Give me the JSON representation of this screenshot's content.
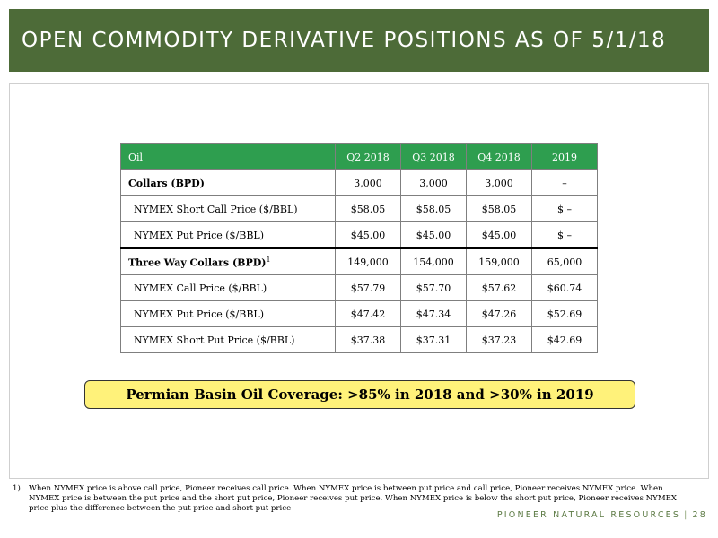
{
  "title": "OPEN COMMODITY DERIVATIVE POSITIONS AS OF 5/1/18",
  "table": {
    "headers": [
      "Oil",
      "Q2 2018",
      "Q3 2018",
      "Q4 2018",
      "2019"
    ],
    "rows": [
      {
        "label": "Collars (BPD)",
        "values": [
          "3,000",
          "3,000",
          "3,000",
          "–"
        ]
      },
      {
        "label": "NYMEX Short Call Price ($/BBL)",
        "values": [
          "$58.05",
          "$58.05",
          "$58.05",
          "$ –"
        ]
      },
      {
        "label": "NYMEX Put Price ($/BBL)",
        "values": [
          "$45.00",
          "$45.00",
          "$45.00",
          "$ –"
        ]
      },
      {
        "label": "Three Way Collars (BPD)",
        "footnote_marker": "1",
        "values": [
          "149,000",
          "154,000",
          "159,000",
          "65,000"
        ]
      },
      {
        "label": "NYMEX Call Price ($/BBL)",
        "values": [
          "$57.79",
          "$57.70",
          "$57.62",
          "$60.74"
        ]
      },
      {
        "label": "NYMEX Put Price ($/BBL)",
        "values": [
          "$47.42",
          "$47.34",
          "$47.26",
          "$52.69"
        ]
      },
      {
        "label": "NYMEX Short Put Price ($/BBL)",
        "values": [
          "$37.38",
          "$37.31",
          "$37.23",
          "$42.69"
        ]
      }
    ]
  },
  "coverage": "Permian Basin Oil Coverage: >85% in 2018 and >30% in 2019",
  "footnote": {
    "number": "1)",
    "text": "When NYMEX price is above call price, Pioneer receives call price. When NYMEX price is between put price and call price, Pioneer receives NYMEX price. When NYMEX price is between the put price and the short put price, Pioneer receives put price. When NYMEX price is below the short put price, Pioneer receives NYMEX price plus the difference between the put price and short put price"
  },
  "footer": {
    "company": "PIONEER NATURAL RESOURCES",
    "divider": "|",
    "page": "28"
  },
  "colors": {
    "title_bar": "#4d6b38",
    "table_header": "#2e9e4f",
    "coverage_fill": "#fff27a",
    "footer_text": "#5c7a44"
  }
}
